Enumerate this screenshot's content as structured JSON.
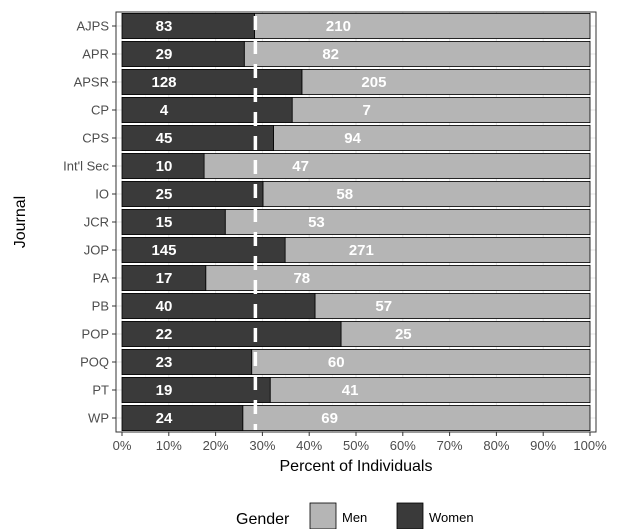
{
  "chart_data": {
    "type": "bar",
    "orientation": "horizontal",
    "stacked": "percent",
    "xlabel": "Percent of Individuals",
    "ylabel": "Journal",
    "xlim": [
      0,
      100
    ],
    "x_ticks": [
      "0%",
      "10%",
      "20%",
      "30%",
      "40%",
      "50%",
      "60%",
      "70%",
      "80%",
      "90%",
      "100%"
    ],
    "categories": [
      "AJPS",
      "APR",
      "APSR",
      "CP",
      "CPS",
      "Int'l Sec",
      "IO",
      "JCR",
      "JOP",
      "PA",
      "PB",
      "POP",
      "POQ",
      "PT",
      "WP"
    ],
    "series": [
      {
        "name": "Women",
        "color": "#3a3a3a",
        "values": [
          83,
          29,
          128,
          4,
          45,
          10,
          25,
          15,
          145,
          17,
          40,
          22,
          23,
          19,
          24
        ]
      },
      {
        "name": "Men",
        "color": "#b5b5b5",
        "values": [
          210,
          82,
          205,
          7,
          94,
          47,
          58,
          53,
          271,
          78,
          57,
          25,
          60,
          41,
          69
        ]
      }
    ],
    "reference_line": {
      "x": 28.5,
      "style": "dashed",
      "color": "#ffffff"
    },
    "grid": true,
    "legend": {
      "title": "Gender",
      "position": "bottom",
      "entries": [
        {
          "name": "Men",
          "color": "#b5b5b5"
        },
        {
          "name": "Women",
          "color": "#3a3a3a"
        }
      ]
    }
  }
}
